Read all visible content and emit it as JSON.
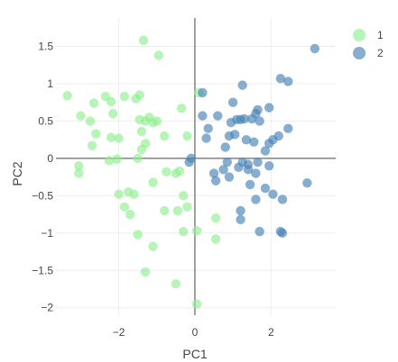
{
  "chart_data": {
    "type": "scatter",
    "xlabel": "PC1",
    "ylabel": "PC2",
    "xlim": [
      -3.65,
      3.7
    ],
    "ylim": [
      -2.1,
      1.88
    ],
    "x_ticks": [
      -2,
      0,
      2
    ],
    "x_tick_labels": [
      "−2",
      "0",
      "2"
    ],
    "y_ticks": [
      -2,
      -1.5,
      -1,
      -0.5,
      0,
      0.5,
      1,
      1.5
    ],
    "y_tick_labels": [
      "−2",
      "−1.5",
      "−1",
      "−0.5",
      "0",
      "0.5",
      "1",
      "1.5"
    ],
    "grid": true,
    "legend_position": "top-right",
    "series": [
      {
        "name": "1",
        "color": "#90ee90",
        "points": [
          [
            -1.35,
            1.58
          ],
          [
            -0.95,
            1.38
          ],
          [
            -3.35,
            0.84
          ],
          [
            -2.35,
            0.83
          ],
          [
            -1.85,
            0.83
          ],
          [
            -1.45,
            0.85
          ],
          [
            -1.55,
            0.8
          ],
          [
            -2.65,
            0.74
          ],
          [
            -2.2,
            0.76
          ],
          [
            -3.0,
            0.57
          ],
          [
            -2.75,
            0.5
          ],
          [
            -2.15,
            0.6
          ],
          [
            -1.45,
            0.52
          ],
          [
            -1.2,
            0.55
          ],
          [
            -1.1,
            0.48
          ],
          [
            -1.3,
            0.5
          ],
          [
            -1.0,
            0.5
          ],
          [
            -2.6,
            0.33
          ],
          [
            -2.2,
            0.28
          ],
          [
            -2.0,
            0.27
          ],
          [
            -1.4,
            0.36
          ],
          [
            -0.8,
            0.3
          ],
          [
            -2.7,
            0.17
          ],
          [
            -1.3,
            0.2
          ],
          [
            -1.4,
            0.12
          ],
          [
            -1.5,
            0.0
          ],
          [
            -2.25,
            -0.03
          ],
          [
            -2.05,
            -0.01
          ],
          [
            -3.05,
            -0.1
          ],
          [
            -3.05,
            -0.2
          ],
          [
            -0.75,
            -0.18
          ],
          [
            -0.5,
            -0.2
          ],
          [
            -0.4,
            -0.17
          ],
          [
            -1.1,
            -0.32
          ],
          [
            -2.0,
            -0.48
          ],
          [
            -1.75,
            -0.45
          ],
          [
            -1.6,
            -0.48
          ],
          [
            -1.85,
            -0.65
          ],
          [
            -1.7,
            -0.75
          ],
          [
            -0.8,
            -0.7
          ],
          [
            -0.45,
            -0.7
          ],
          [
            -0.3,
            -0.5
          ],
          [
            -0.2,
            -0.65
          ],
          [
            -1.5,
            -1.02
          ],
          [
            -0.3,
            -0.98
          ],
          [
            0.05,
            -0.97
          ],
          [
            -1.1,
            -1.18
          ],
          [
            -1.3,
            -1.52
          ],
          [
            -0.5,
            -1.68
          ],
          [
            0.05,
            -1.95
          ],
          [
            0.55,
            -0.8
          ],
          [
            0.55,
            -1.08
          ],
          [
            -0.35,
            0.67
          ],
          [
            -0.2,
            0.3
          ],
          [
            0.1,
            0.88
          ]
        ]
      },
      {
        "name": "2",
        "color": "#4682b4",
        "points": [
          [
            3.15,
            1.47
          ],
          [
            2.25,
            1.07
          ],
          [
            2.45,
            1.03
          ],
          [
            1.25,
            0.98
          ],
          [
            0.2,
            0.88
          ],
          [
            1.0,
            0.75
          ],
          [
            1.95,
            0.68
          ],
          [
            1.65,
            0.65
          ],
          [
            0.2,
            0.57
          ],
          [
            0.6,
            0.57
          ],
          [
            1.6,
            0.6
          ],
          [
            1.5,
            0.53
          ],
          [
            1.1,
            0.52
          ],
          [
            1.2,
            0.52
          ],
          [
            1.3,
            0.53
          ],
          [
            1.7,
            0.5
          ],
          [
            0.95,
            0.48
          ],
          [
            2.45,
            0.4
          ],
          [
            0.35,
            0.4
          ],
          [
            0.9,
            0.3
          ],
          [
            1.05,
            0.32
          ],
          [
            0.3,
            0.27
          ],
          [
            1.35,
            0.25
          ],
          [
            1.55,
            0.22
          ],
          [
            2.05,
            0.25
          ],
          [
            1.95,
            0.2
          ],
          [
            2.2,
            0.3
          ],
          [
            1.85,
            0.1
          ],
          [
            0.8,
            0.15
          ],
          [
            1.25,
            -0.05
          ],
          [
            1.4,
            -0.08
          ],
          [
            1.65,
            -0.05
          ],
          [
            1.95,
            -0.1
          ],
          [
            0.85,
            -0.05
          ],
          [
            1.15,
            -0.12
          ],
          [
            1.4,
            -0.15
          ],
          [
            -0.15,
            -0.05
          ],
          [
            -0.1,
            0.0
          ],
          [
            0.75,
            -0.15
          ],
          [
            1.6,
            -0.2
          ],
          [
            0.5,
            -0.2
          ],
          [
            0.9,
            -0.25
          ],
          [
            0.55,
            -0.3
          ],
          [
            1.45,
            -0.35
          ],
          [
            1.85,
            -0.4
          ],
          [
            2.05,
            -0.48
          ],
          [
            2.3,
            -0.55
          ],
          [
            2.95,
            -0.33
          ],
          [
            1.2,
            -0.7
          ],
          [
            1.2,
            -0.82
          ],
          [
            1.7,
            -0.98
          ],
          [
            2.25,
            -0.98
          ],
          [
            2.3,
            -1.0
          ],
          [
            1.6,
            -0.55
          ]
        ]
      }
    ]
  }
}
